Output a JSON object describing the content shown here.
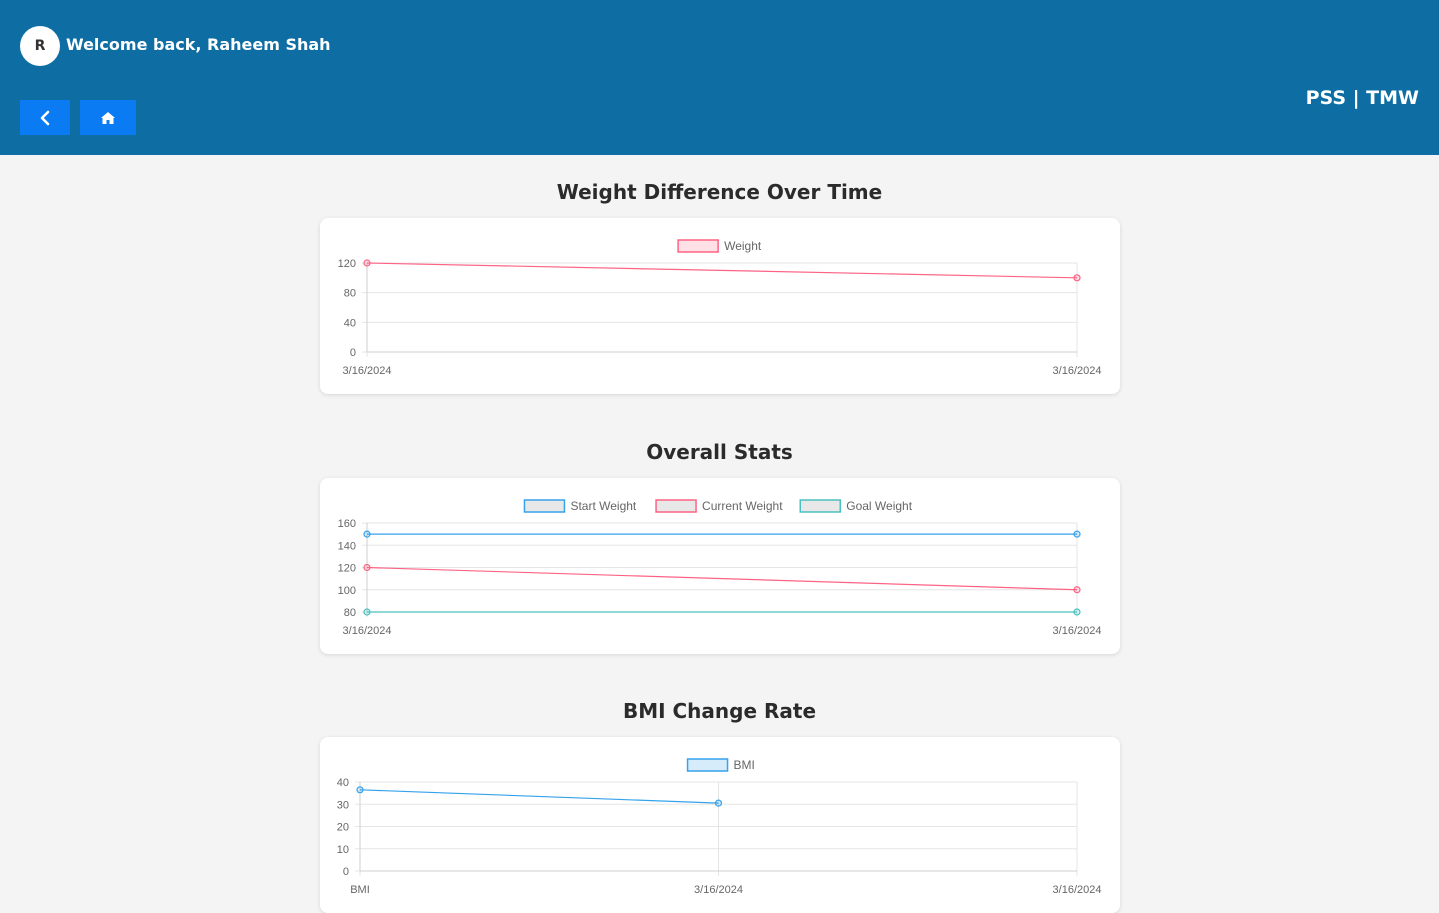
{
  "header": {
    "avatar_initial": "R",
    "welcome_text": "Welcome back, Raheem Shah",
    "brand": "PSS | TMW",
    "back_icon": "chevron-left-icon",
    "home_icon": "home-icon"
  },
  "sections": [
    {
      "title": "Weight Difference Over Time"
    },
    {
      "title": "Overall Stats"
    },
    {
      "title": "BMI Change Rate"
    }
  ],
  "chart_data": [
    {
      "type": "line",
      "title": "Weight Difference Over Time",
      "categories": [
        "3/16/2024",
        "3/16/2024"
      ],
      "series": [
        {
          "name": "Weight",
          "values": [
            120,
            100
          ],
          "color": "#ff6384"
        }
      ],
      "ylim": [
        0,
        120
      ],
      "yticks": [
        0,
        40,
        80,
        120
      ],
      "grid": true,
      "legend": "top"
    },
    {
      "type": "line",
      "title": "Overall Stats",
      "categories": [
        "3/16/2024",
        "3/16/2024"
      ],
      "series": [
        {
          "name": "Start Weight",
          "values": [
            150,
            150
          ],
          "color": "#36a2eb"
        },
        {
          "name": "Current Weight",
          "values": [
            120,
            100
          ],
          "color": "#ff6384"
        },
        {
          "name": "Goal Weight",
          "values": [
            80,
            80
          ],
          "color": "#4bc0c0"
        }
      ],
      "ylim": [
        80,
        160
      ],
      "yticks": [
        80,
        100,
        120,
        140,
        160
      ],
      "grid": true,
      "legend": "top"
    },
    {
      "type": "line",
      "title": "BMI Change Rate",
      "categories": [
        "BMI",
        "3/16/2024",
        "3/16/2024"
      ],
      "series": [
        {
          "name": "BMI",
          "values": [
            36.5,
            30.5,
            null
          ],
          "color": "#36a2eb"
        }
      ],
      "ylim": [
        0,
        40
      ],
      "yticks": [
        0,
        10,
        20,
        30,
        40
      ],
      "grid": true,
      "legend": "top"
    }
  ]
}
